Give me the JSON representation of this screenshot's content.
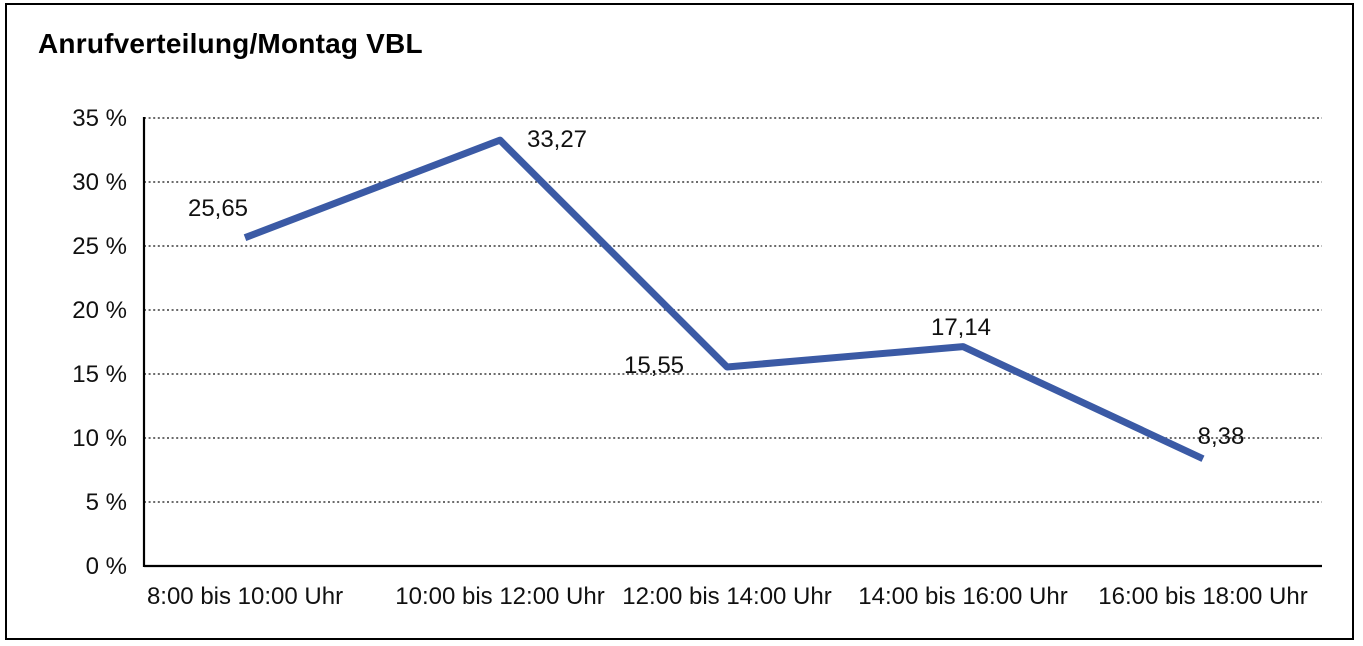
{
  "chart_data": {
    "type": "line",
    "title": "Anrufverteilung/Montag VBL",
    "categories": [
      "8:00 bis 10:00 Uhr",
      "10:00 bis 12:00 Uhr",
      "12:00 bis 14:00 Uhr",
      "14:00 bis 16:00 Uhr",
      "16:00 bis 18:00 Uhr"
    ],
    "values": [
      25.65,
      33.27,
      15.55,
      17.14,
      8.38
    ],
    "point_labels": [
      "25,65",
      "33,27",
      "15,55",
      "17,14",
      "8,38"
    ],
    "y_ticks": [
      "35 %",
      "30 %",
      "25 %",
      "20 %",
      "15 %",
      "10 %",
      "5 %",
      "0 %"
    ],
    "ylim": [
      0,
      35
    ],
    "y_step": 5,
    "xlabel": "",
    "ylabel": "",
    "grid": "horizontal-dotted",
    "legend": "none",
    "colors": {
      "line": "#3B5AA5",
      "grid": "#3a3a3a",
      "axis": "#000000",
      "text": "#111111",
      "background": "#ffffff",
      "border": "#000000"
    }
  }
}
